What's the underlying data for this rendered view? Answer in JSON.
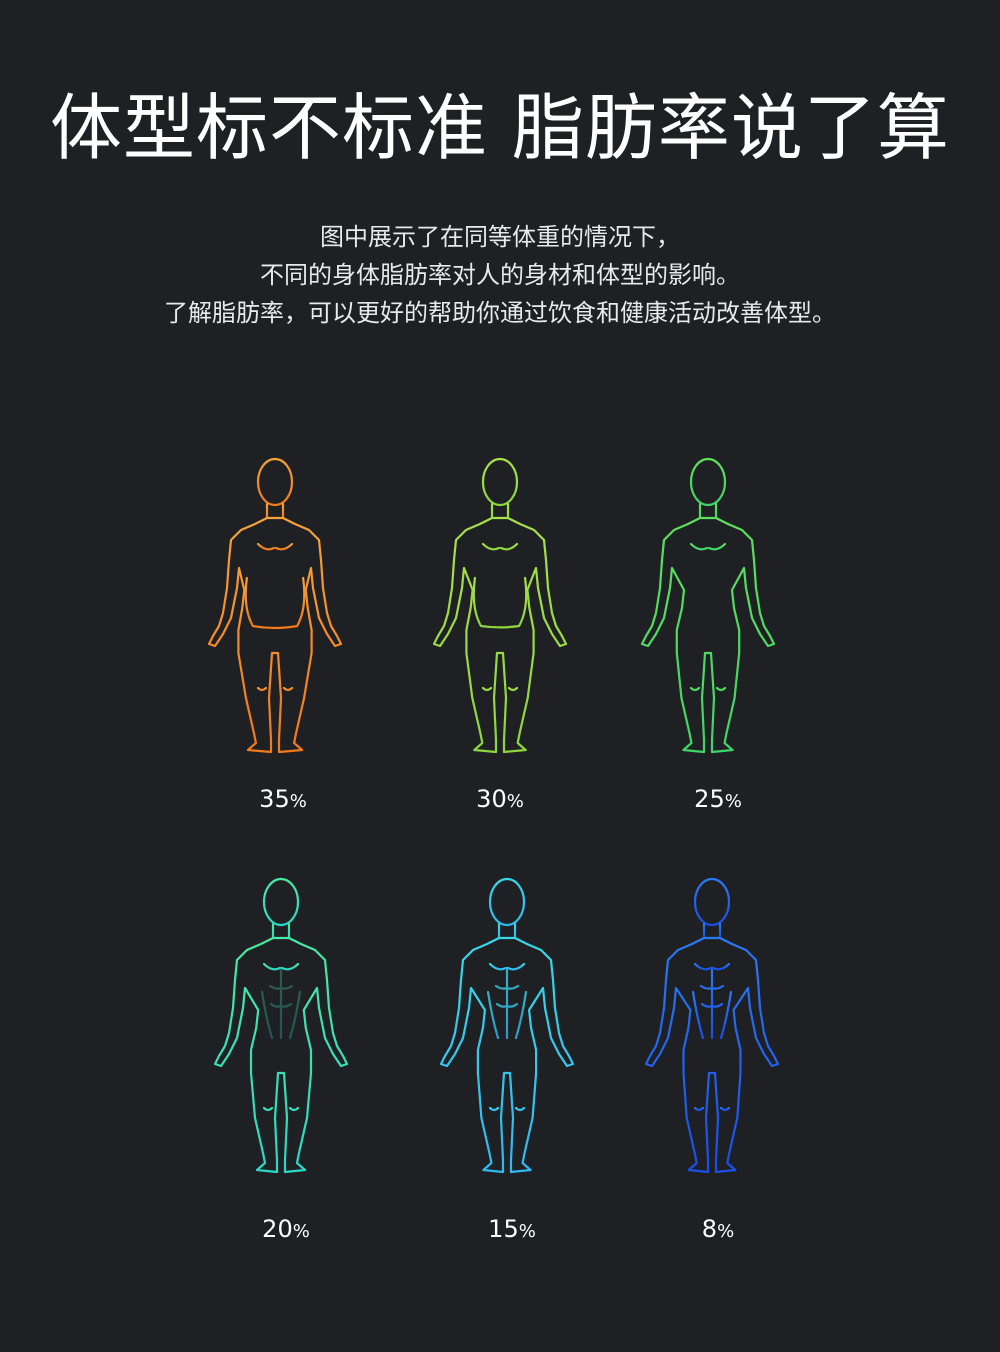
{
  "title": "体型标不标准 脂肪率说了算",
  "description": [
    "图中展示了在同等体重的情况下，",
    "不同的身体脂肪率对人的身材和体型的影响。",
    "了解脂肪率，可以更好的帮助你通过饮食和健康活动改善体型。"
  ],
  "figures": [
    {
      "value": "35",
      "unit": "%",
      "color_top": "#f5a23a",
      "color_bottom": "#f07a1c"
    },
    {
      "value": "30",
      "unit": "%",
      "color_top": "#a8e04a",
      "color_bottom": "#8cd63c"
    },
    {
      "value": "25",
      "unit": "%",
      "color_top": "#5fe05a",
      "color_bottom": "#3fd468"
    },
    {
      "value": "20",
      "unit": "%",
      "color_top": "#4ae8a0",
      "color_bottom": "#2ad8c4"
    },
    {
      "value": "15",
      "unit": "%",
      "color_top": "#38d8e8",
      "color_bottom": "#30b8f0"
    },
    {
      "value": "8",
      "unit": "%",
      "color_top": "#2a7af0",
      "color_bottom": "#1a4ee8"
    }
  ]
}
